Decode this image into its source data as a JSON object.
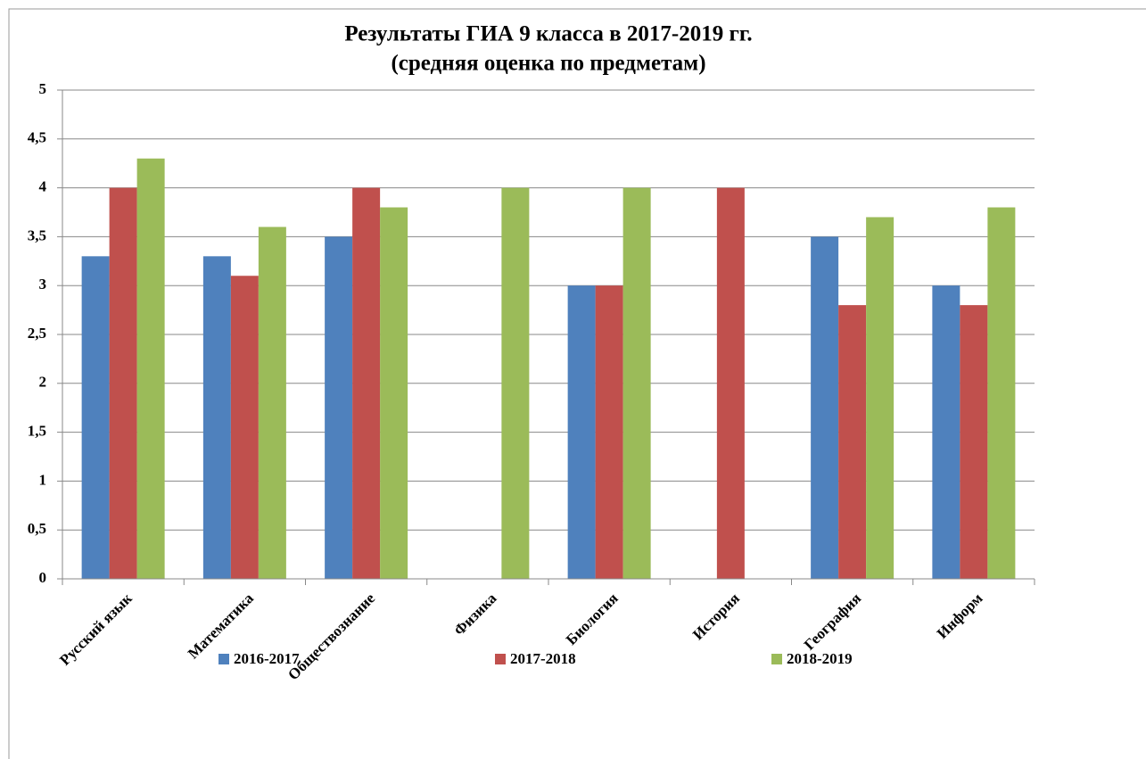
{
  "chart_data": {
    "type": "bar",
    "title": "Результаты ГИА 9 класса в 2017-2019 гг.",
    "subtitle": "(средняя оценка по предметам)",
    "categories": [
      "Русский язык",
      "Математика",
      "Обществознание",
      "Физика",
      "Биология",
      "История",
      "География",
      "Информ"
    ],
    "series": [
      {
        "name": "2016-2017",
        "color": "#4f81bd",
        "values": [
          3.3,
          3.3,
          3.5,
          null,
          3,
          null,
          3.5,
          3
        ]
      },
      {
        "name": "2017-2018",
        "color": "#c0504d",
        "values": [
          4,
          3.1,
          4,
          null,
          3,
          4,
          2.8,
          2.8
        ]
      },
      {
        "name": "2018-2019",
        "color": "#9bbb59",
        "values": [
          4.3,
          3.6,
          3.8,
          4,
          4,
          null,
          3.7,
          3.8
        ]
      }
    ],
    "ylim": [
      0,
      5
    ],
    "yticks": [
      0,
      {
        "value": 0.5,
        "label": "0,5"
      },
      1,
      {
        "value": 1.5,
        "label": "1,5"
      },
      2,
      {
        "value": 2.5,
        "label": "2,5"
      },
      3,
      {
        "value": 3.5,
        "label": "3,5"
      },
      4,
      {
        "value": 4.5,
        "label": "4,5"
      },
      5
    ],
    "grid": true,
    "legend": "bottom"
  }
}
